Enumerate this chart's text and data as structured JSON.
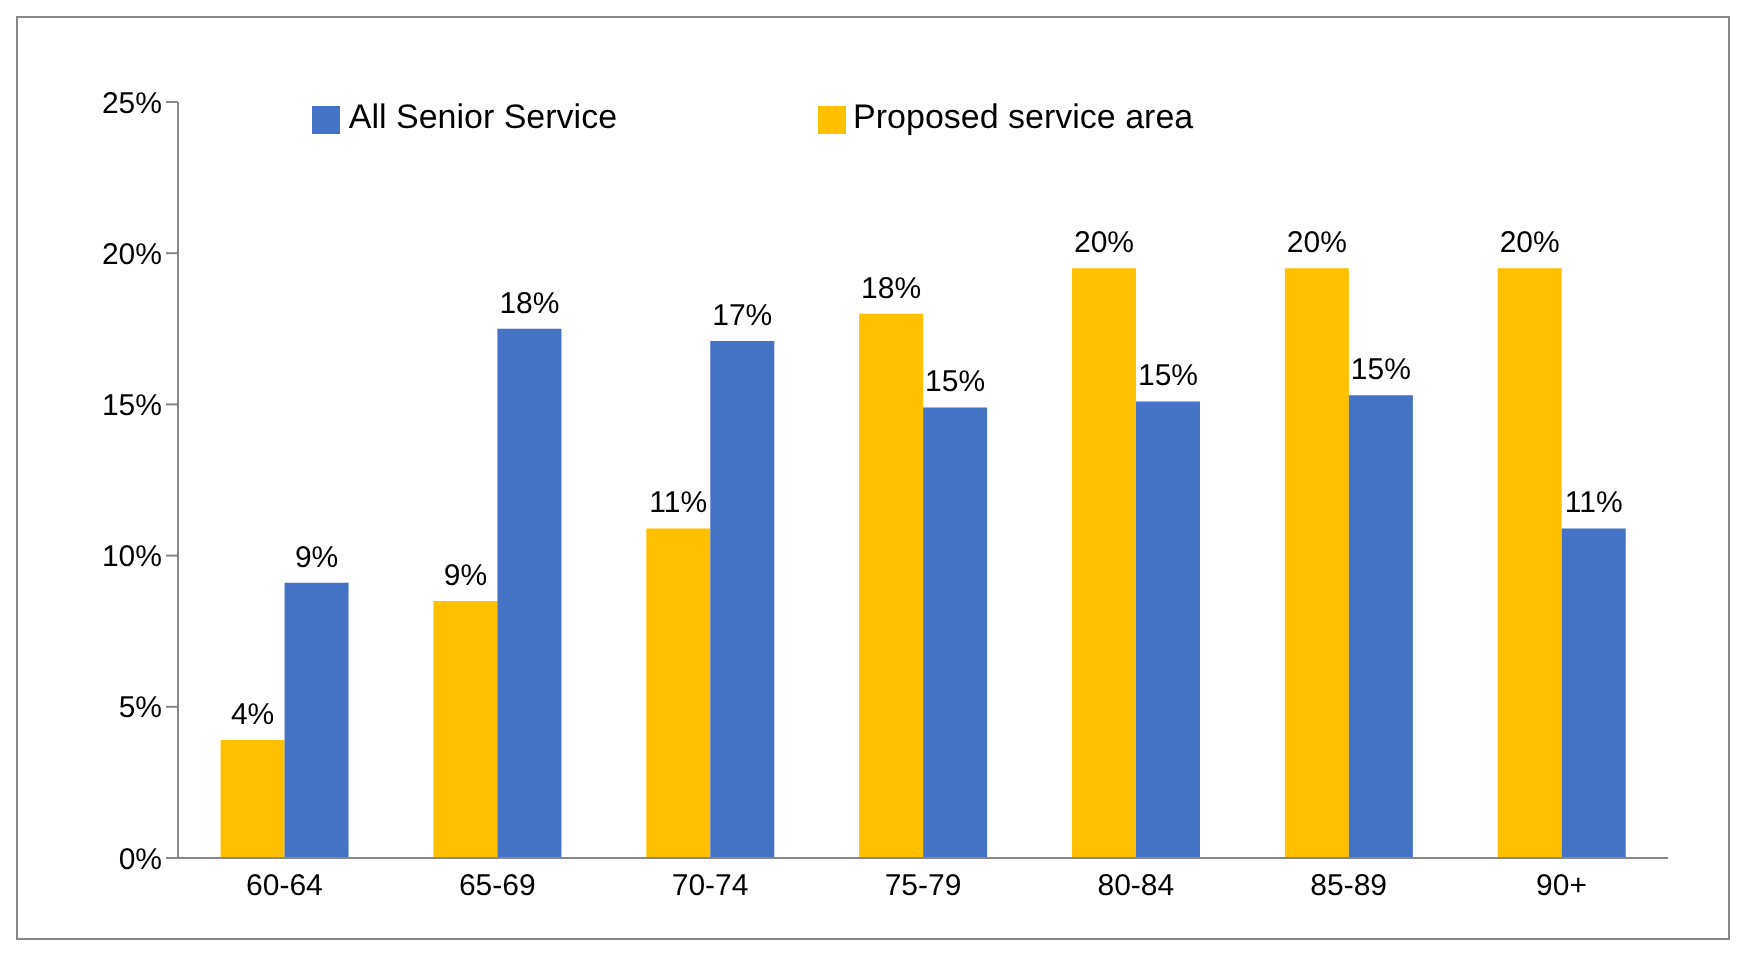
{
  "chart_data": {
    "type": "bar",
    "categories": [
      "60-64",
      "65-69",
      "70-74",
      "75-79",
      "80-84",
      "85-89",
      "90+"
    ],
    "series": [
      {
        "name": "Proposed service area",
        "color": "#ffc000",
        "values": [
          3.9,
          8.5,
          10.9,
          18.0,
          19.5,
          19.5,
          19.5
        ],
        "value_labels": [
          "4%",
          "9%",
          "11%",
          "18%",
          "20%",
          "20%",
          "20%"
        ]
      },
      {
        "name": "All Senior Service",
        "color": "#4472c4",
        "values": [
          9.1,
          17.5,
          17.1,
          14.9,
          15.1,
          15.3,
          10.9
        ],
        "value_labels": [
          "9%",
          "18%",
          "17%",
          "15%",
          "15%",
          "15%",
          "11%"
        ]
      }
    ],
    "ylim": [
      0,
      25
    ],
    "yticks": [
      {
        "value": 0,
        "label": "0%"
      },
      {
        "value": 5,
        "label": "5%"
      },
      {
        "value": 10,
        "label": "10%"
      },
      {
        "value": 15,
        "label": "15%"
      },
      {
        "value": 20,
        "label": "20%"
      },
      {
        "value": 25,
        "label": "25%"
      }
    ],
    "grid": false,
    "legend": "top"
  }
}
